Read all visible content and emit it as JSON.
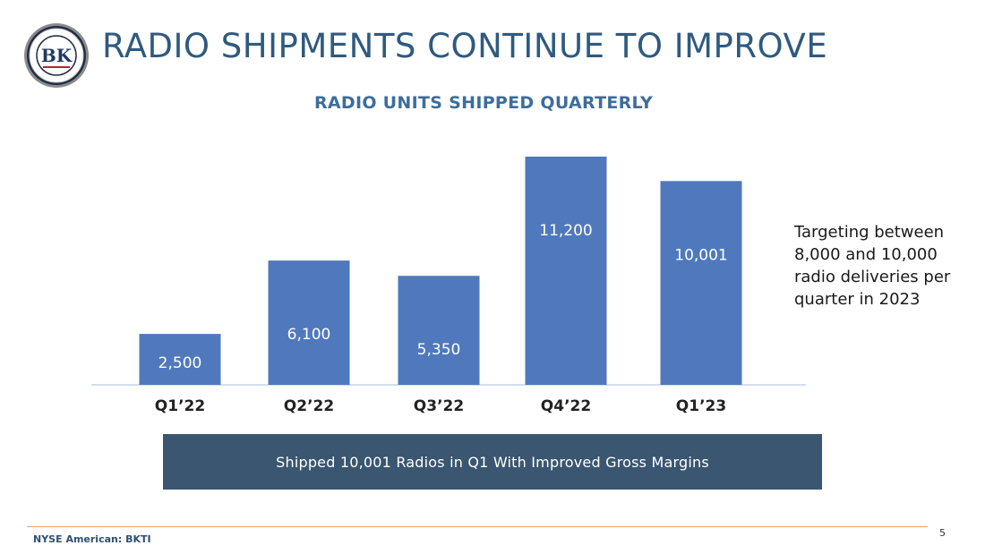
{
  "slide": {
    "title": "RADIO SHIPMENTS CONTINUE TO IMPROVE",
    "logo_text": "BK",
    "note": "Targeting between 8,000 and 10,000 radio deliveries per quarter in 2023",
    "banner": "Shipped 10,001 Radios in Q1 With Improved Gross Margins",
    "footer_left": "NYSE American: BKTI",
    "page_number": "5"
  },
  "colors": {
    "bar": "#5079bd",
    "title": "#2f5a80",
    "chart_title": "#3d6d9c",
    "banner": "#3a5670",
    "footer_rule": "#e2a27a"
  },
  "chart_data": {
    "type": "bar",
    "title": "RADIO UNITS SHIPPED QUARTERLY",
    "xlabel": "",
    "ylabel": "",
    "categories": [
      "Q1’22",
      "Q2’22",
      "Q3’22",
      "Q4’22",
      "Q1’23"
    ],
    "values": [
      2500,
      6100,
      5350,
      11200,
      10001
    ],
    "data_labels": [
      "2,500",
      "6,100",
      "5,350",
      "11,200",
      "10,001"
    ],
    "ylim": [
      0,
      11200
    ],
    "grid": false,
    "legend": "none"
  }
}
